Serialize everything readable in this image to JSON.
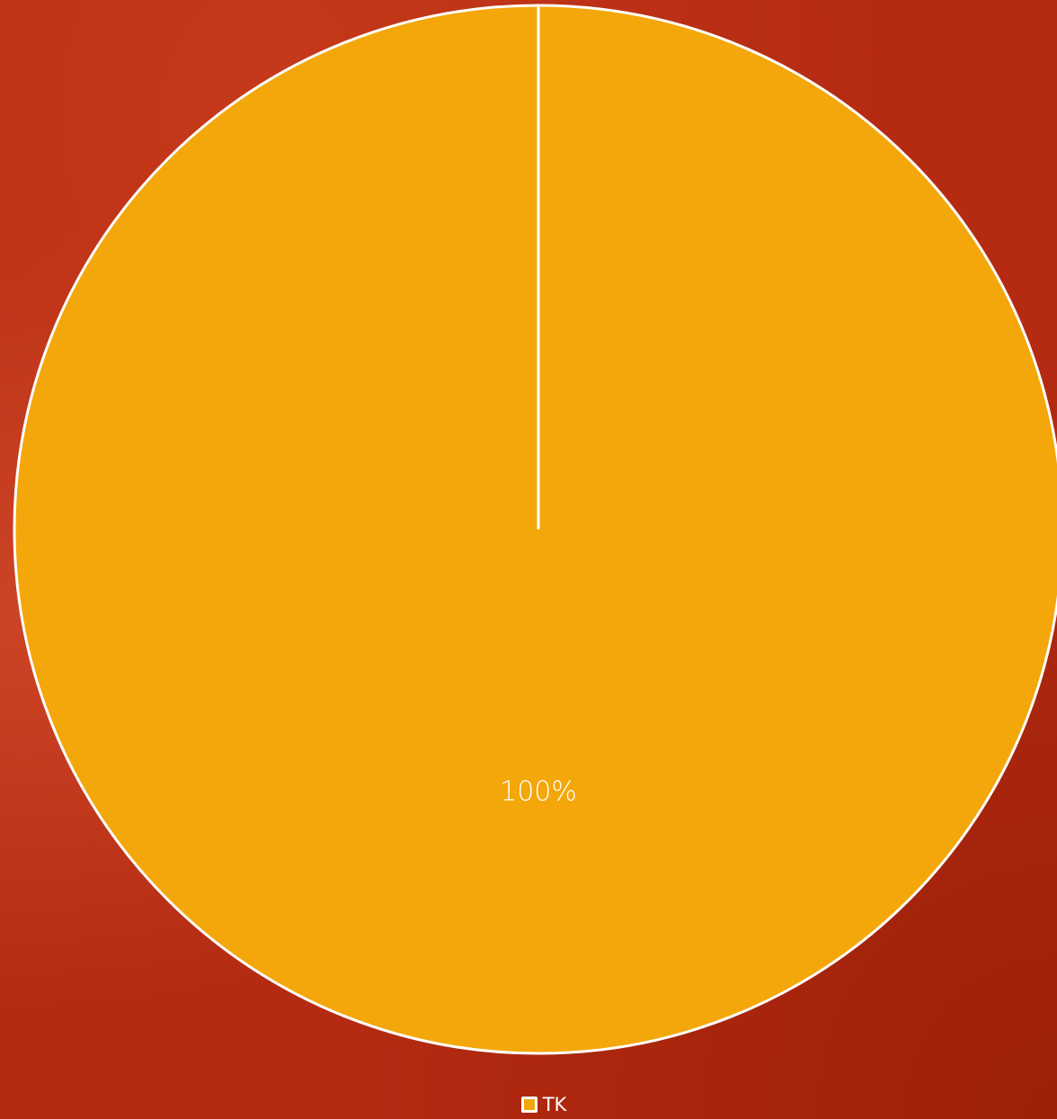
{
  "chart_data": {
    "type": "pie",
    "title": "",
    "categories": [
      "TK"
    ],
    "values": [
      100
    ],
    "data_labels": [
      "100%"
    ],
    "colors": [
      "#f4a70a"
    ],
    "slice_border_color": "#ffffff",
    "background_color": "#b52b12",
    "legend_position": "bottom",
    "legend": [
      "TK"
    ]
  }
}
